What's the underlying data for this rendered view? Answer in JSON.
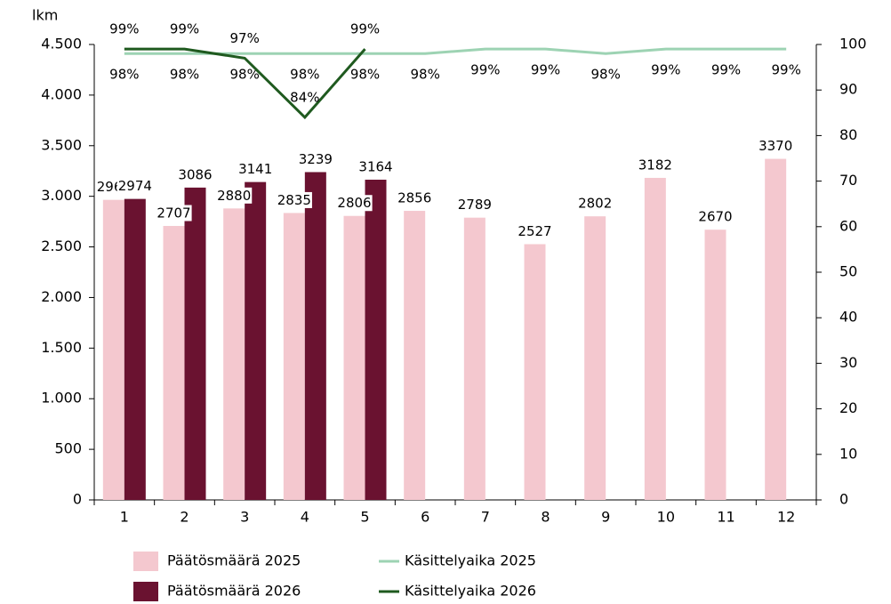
{
  "chart_data": {
    "type": "bar",
    "ylabel": "lkm",
    "categories": [
      "1",
      "2",
      "3",
      "4",
      "5",
      "6",
      "7",
      "8",
      "9",
      "10",
      "11",
      "12"
    ],
    "series": [
      {
        "name": "Päätösmäärä 2025",
        "type": "bar",
        "color": "#f4c8cf",
        "values": [
          2965,
          2707,
          2880,
          2835,
          2806,
          2856,
          2789,
          2527,
          2802,
          3182,
          2670,
          3370
        ]
      },
      {
        "name": "Päätösmäärä 2026",
        "type": "bar",
        "color": "#6a1230",
        "values": [
          2974,
          3086,
          3141,
          3239,
          3164,
          null,
          null,
          null,
          null,
          null,
          null,
          null
        ]
      },
      {
        "name": "Käsittelyaika 2025",
        "type": "line",
        "axis": "y2",
        "color": "#9dd3b3",
        "values": [
          98,
          98,
          98,
          98,
          98,
          98,
          99,
          99,
          98,
          99,
          99,
          99
        ],
        "value_labels": [
          "98%",
          "98%",
          "98%",
          "98%",
          "98%",
          "98%",
          "99%",
          "99%",
          "98%",
          "99%",
          "99%",
          "99%"
        ]
      },
      {
        "name": "Käsittelyaika 2026",
        "type": "line",
        "axis": "y2",
        "color": "#1f5a1f",
        "values": [
          99,
          99,
          97,
          84,
          99,
          null,
          null,
          null,
          null,
          null,
          null,
          null
        ],
        "value_labels": [
          "99%",
          "99%",
          "97%",
          "84%",
          "99%",
          null,
          null,
          null,
          null,
          null,
          null,
          null
        ]
      }
    ],
    "ylim": [
      0,
      4500
    ],
    "yticks": [
      0,
      500,
      {
        "value": 1000,
        "label": "1.000"
      },
      {
        "value": 1500,
        "label": "1.500"
      },
      {
        "value": 2000,
        "label": "2.000"
      },
      {
        "value": 2500,
        "label": "2.500"
      },
      {
        "value": 3000,
        "label": "3.000"
      },
      {
        "value": 3500,
        "label": "3.500"
      },
      {
        "value": 4000,
        "label": "4.000"
      },
      {
        "value": 4500,
        "label": "4.500"
      }
    ],
    "y2lim": [
      0,
      100
    ],
    "y2ticks": [
      0,
      10,
      20,
      30,
      40,
      50,
      60,
      70,
      80,
      90,
      100
    ],
    "legend": "bottom"
  }
}
